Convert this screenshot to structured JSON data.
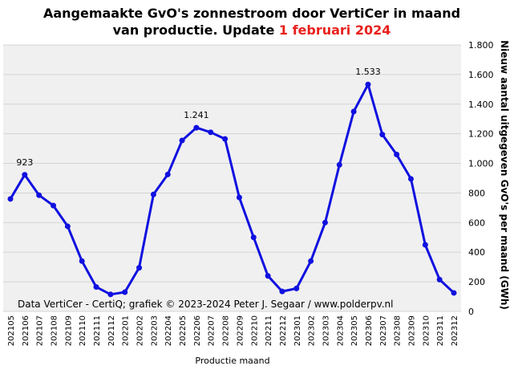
{
  "chart_data": {
    "type": "line",
    "title_part1": "Aangemaakte GvO's zonnestroom door VertiCer in maand",
    "title_part2": "van productie. Update ",
    "title_highlight": "1 februari 2024",
    "ylabel": "Nieuw aantal uitgegeven GvO's per maand (GWh)",
    "xlabel": "Productie maand",
    "credit": "Data VertiCer - CertiQ; grafiek © 2023-2024 Peter J. Segaar / www.polderpv.nl",
    "ylim": [
      0,
      1800
    ],
    "yticks": [
      0,
      200,
      400,
      600,
      800,
      1000,
      1200,
      1400,
      1600,
      1800
    ],
    "ytick_labels": [
      "0",
      "200",
      "400",
      "600",
      "800",
      "1.000",
      "1.200",
      "1.400",
      "1.600",
      "1.800"
    ],
    "grid": true,
    "line_color": "#1010e0",
    "plot_bg": "#f0f0f0",
    "categories": [
      "202105",
      "202106",
      "202107",
      "202108",
      "202109",
      "202110",
      "202111",
      "202112",
      "202201",
      "202202",
      "202203",
      "202204",
      "202205",
      "202206",
      "202207",
      "202208",
      "202209",
      "202210",
      "202211",
      "202212",
      "202301",
      "202302",
      "202303",
      "202304",
      "202305",
      "202306",
      "202307",
      "202308",
      "202309",
      "202310",
      "202311",
      "202312"
    ],
    "values": [
      760,
      923,
      785,
      715,
      575,
      340,
      165,
      115,
      130,
      295,
      790,
      925,
      1155,
      1241,
      1210,
      1165,
      770,
      500,
      240,
      135,
      155,
      340,
      600,
      990,
      1350,
      1533,
      1195,
      1060,
      895,
      450,
      215,
      125
    ],
    "annotations": [
      {
        "index": 1,
        "text": "923"
      },
      {
        "index": 13,
        "text": "1.241"
      },
      {
        "index": 25,
        "text": "1.533"
      }
    ]
  }
}
